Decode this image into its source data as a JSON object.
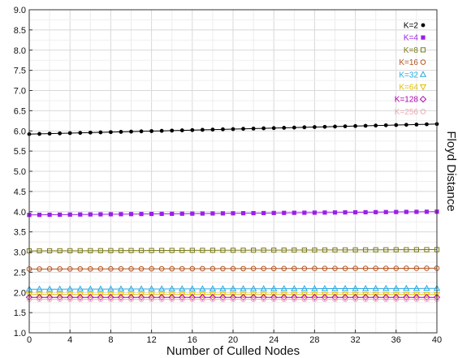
{
  "chart_data": {
    "type": "line",
    "xlabel": "Number of Culled Nodes",
    "ylabel": "Floyd Distance",
    "xlim": [
      0,
      40
    ],
    "ylim": [
      1.0,
      9.0
    ],
    "xticks": [
      "0",
      "4",
      "8",
      "12",
      "16",
      "20",
      "24",
      "28",
      "32",
      "36",
      "40"
    ],
    "yticks": [
      "1.0",
      "1.5",
      "2.0",
      "2.5",
      "3.0",
      "3.5",
      "4.0",
      "4.5",
      "5.0",
      "5.5",
      "6.0",
      "6.5",
      "7.0",
      "7.5",
      "8.0",
      "8.5",
      "9.0"
    ],
    "grid": true,
    "legend_position": "top-right",
    "x": [
      0,
      1,
      2,
      3,
      4,
      5,
      6,
      7,
      8,
      9,
      10,
      11,
      12,
      13,
      14,
      15,
      16,
      17,
      18,
      19,
      20,
      21,
      22,
      23,
      24,
      25,
      26,
      27,
      28,
      29,
      30,
      31,
      32,
      33,
      34,
      35,
      36,
      37,
      38,
      39,
      40
    ],
    "series": [
      {
        "name": "K=2",
        "color": "#000000",
        "marker": "dot",
        "start": 5.92,
        "end": 6.17
      },
      {
        "name": "K=4",
        "color": "#9b1fe8",
        "marker": "square-filled",
        "start": 3.92,
        "end": 4.0
      },
      {
        "name": "K=8",
        "color": "#7a7a1a",
        "marker": "square-open",
        "start": 3.03,
        "end": 3.06
      },
      {
        "name": "K=16",
        "color": "#b5531f",
        "marker": "circle-open",
        "start": 2.58,
        "end": 2.6
      },
      {
        "name": "K=32",
        "color": "#2aa8e0",
        "marker": "triangle-open",
        "start": 2.08,
        "end": 2.1
      },
      {
        "name": "K=64",
        "color": "#e0c000",
        "marker": "triangle-down-open",
        "start": 1.95,
        "end": 1.95
      },
      {
        "name": "K=128",
        "color": "#b000b0",
        "marker": "diamond-open",
        "start": 1.88,
        "end": 1.88
      },
      {
        "name": "K=256",
        "color": "#f2a8b4",
        "marker": "circle-open",
        "start": 1.83,
        "end": 1.83
      }
    ]
  }
}
